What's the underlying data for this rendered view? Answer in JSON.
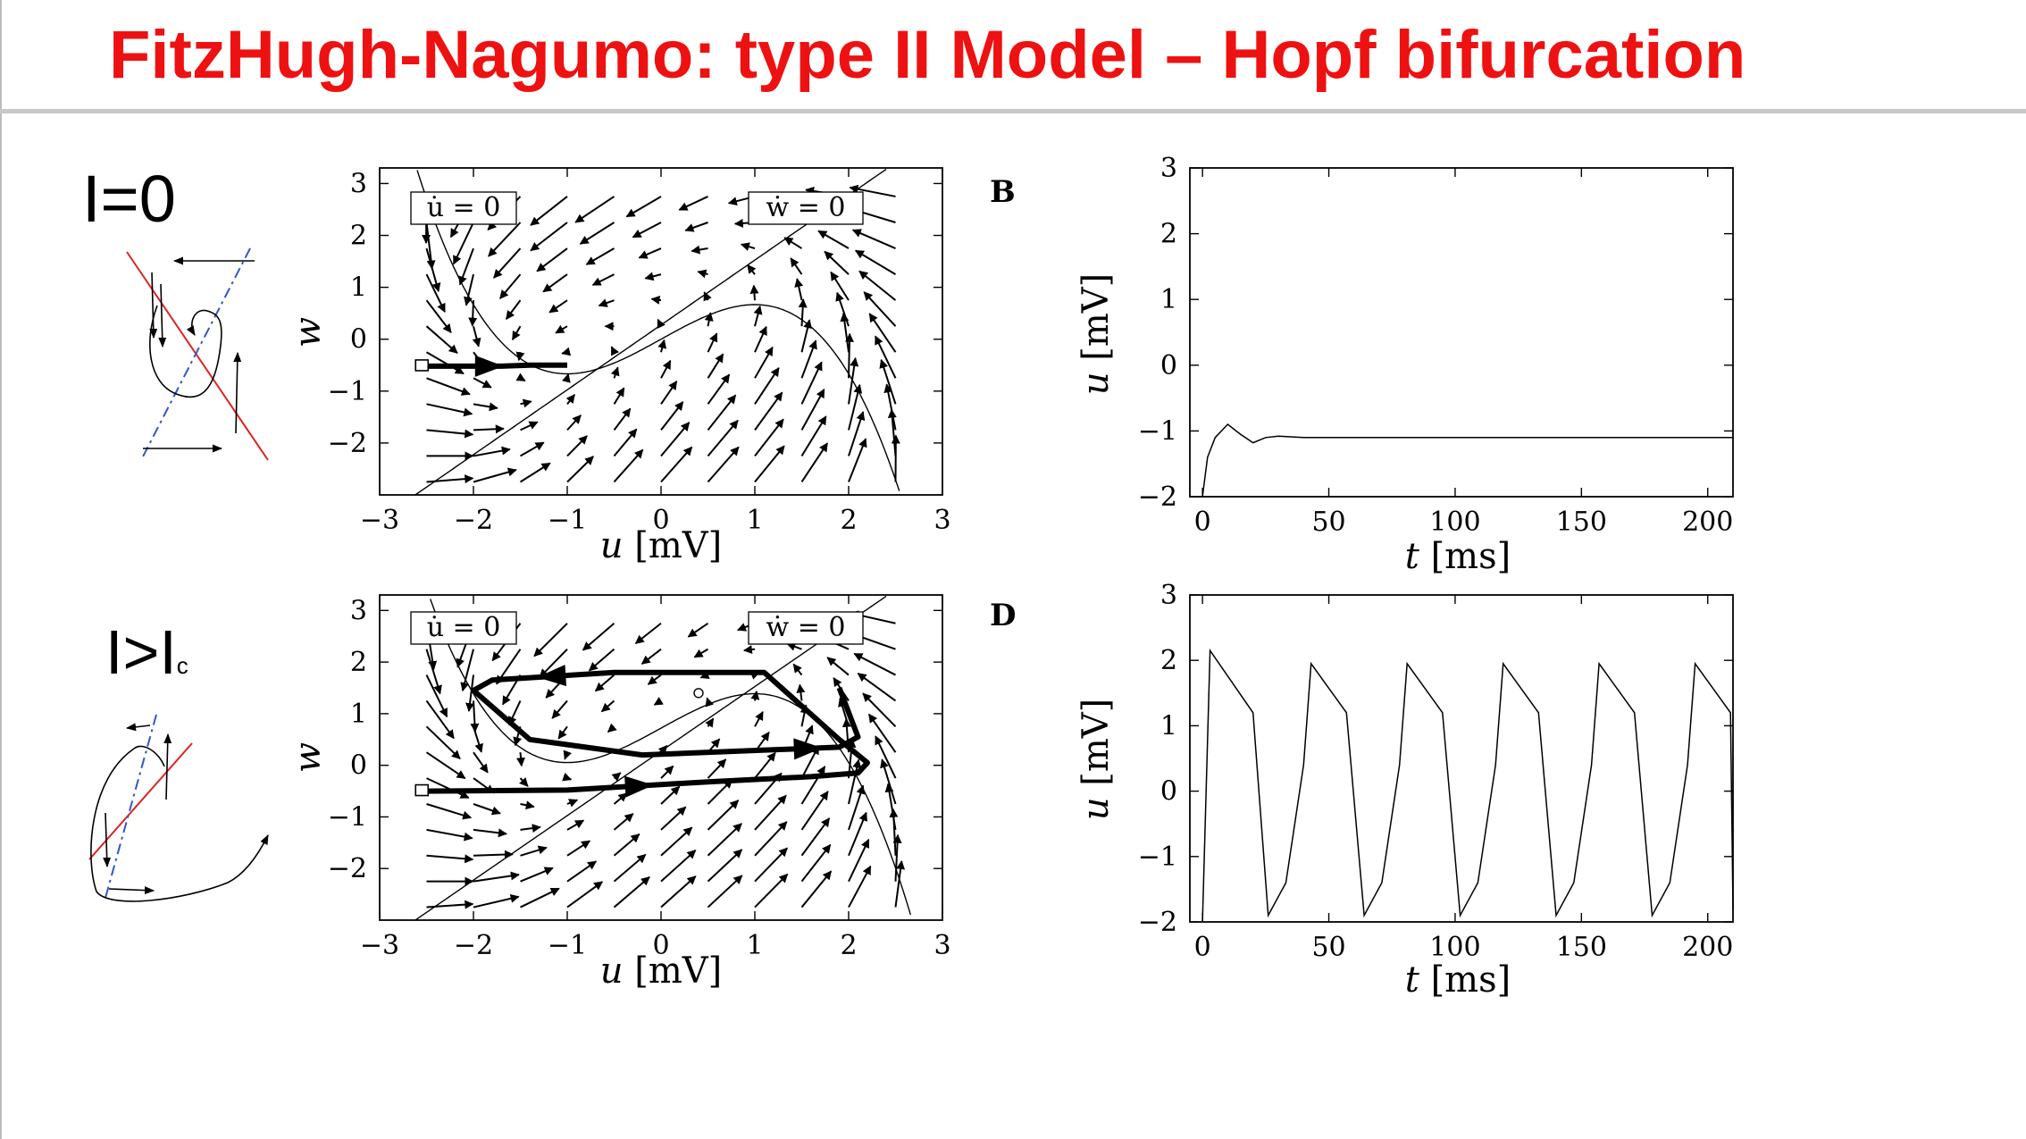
{
  "title": "FitzHugh-Nagumo:  type II Model – Hopf bifurcation",
  "conditions": {
    "top": "I=0",
    "bottom_main": "I>I",
    "bottom_sub": "c"
  },
  "colors": {
    "title": "#ee1111",
    "sketch_nullcline_red": "#dd2222",
    "sketch_nullcline_blue": "#3355cc"
  },
  "phase_axes": {
    "xlabel_var": "u",
    "xlabel_unit": "[mV]",
    "ylabel": "w",
    "xticks": [
      "−3",
      "−2",
      "−1",
      "0",
      "1",
      "2",
      "3"
    ],
    "yticks": [
      "3",
      "2",
      "1",
      "0",
      "−1",
      "−2"
    ],
    "xlim": [
      -3,
      3
    ],
    "ylim": [
      -3,
      3.3
    ]
  },
  "nullcline_labels": {
    "u_dot": "u̇ = 0",
    "w_dot": "ẇ = 0"
  },
  "time_axes": {
    "xlabel_var": "t",
    "xlabel_unit": "[ms]",
    "ylabel_var": "u",
    "ylabel_unit": "[mV]",
    "xticks": [
      "0",
      "50",
      "100",
      "150",
      "200"
    ],
    "yticks": [
      "3",
      "2",
      "1",
      "0",
      "−1",
      "−2"
    ],
    "xlim": [
      -5,
      210
    ],
    "ylim": [
      -2,
      3
    ]
  },
  "panel_labels": {
    "B": "B",
    "D": "D"
  },
  "chart_data": [
    {
      "type": "line",
      "title": "",
      "xlabel": "u [mV]",
      "ylabel": "w",
      "xlim": [
        -3,
        3
      ],
      "ylim": [
        -3,
        3.3
      ],
      "series": [
        {
          "x": [
            -2.55,
            -2.3,
            -2.0,
            -1.7,
            -1.4,
            -1.15,
            -1.0
          ],
          "y": [
            -0.52,
            -0.52,
            -0.52,
            -0.52,
            -0.5,
            -0.5,
            -0.5
          ]
        }
      ]
    },
    {
      "type": "line",
      "title": "",
      "xlabel": "t [ms]",
      "ylabel": "u [mV]",
      "xlim": [
        -5,
        210
      ],
      "ylim": [
        -2,
        3
      ],
      "series": [
        {
          "x": [
            0,
            2,
            5,
            10,
            15,
            20,
            25,
            30,
            40,
            60,
            100,
            150,
            210
          ],
          "y": [
            -2,
            -1.4,
            -1.1,
            -0.9,
            -1.05,
            -1.18,
            -1.1,
            -1.08,
            -1.1,
            -1.1,
            -1.1,
            -1.1,
            -1.1
          ]
        }
      ]
    },
    {
      "type": "line",
      "title": "",
      "xlabel": "u [mV]",
      "ylabel": "w",
      "xlim": [
        -3,
        3
      ],
      "ylim": [
        -3,
        3.3
      ],
      "series": [
        {
          "x": [
            -2.55,
            -1.0,
            0.5,
            1.6,
            2.1,
            2.2,
            1.9,
            1.1,
            -0.5,
            -1.8,
            -2.0,
            -1.4,
            -0.2,
            1.2,
            1.9,
            2.1,
            1.9
          ],
          "y": [
            -0.5,
            -0.48,
            -0.32,
            -0.22,
            -0.15,
            0.05,
            0.5,
            1.8,
            1.8,
            1.65,
            1.45,
            0.5,
            0.2,
            0.3,
            0.35,
            0.55,
            1.5
          ]
        }
      ]
    },
    {
      "type": "line",
      "title": "",
      "xlabel": "t [ms]",
      "ylabel": "u [mV]",
      "xlim": [
        -5,
        210
      ],
      "ylim": [
        -2,
        3
      ],
      "series": [
        {
          "x": [
            0,
            3,
            20,
            26,
            33,
            40,
            43,
            57,
            64,
            71,
            78,
            81,
            95,
            102,
            109,
            116,
            119,
            133,
            140,
            147,
            154,
            157,
            171,
            178,
            185,
            192,
            195,
            209,
            210
          ],
          "y": [
            -2,
            2.15,
            1.2,
            -1.9,
            -1.4,
            0.4,
            1.95,
            1.2,
            -1.9,
            -1.4,
            0.4,
            1.95,
            1.2,
            -1.9,
            -1.4,
            0.4,
            1.95,
            1.2,
            -1.9,
            -1.4,
            0.4,
            1.95,
            1.2,
            -1.9,
            -1.4,
            0.4,
            1.95,
            1.2,
            -1.8
          ]
        }
      ]
    }
  ]
}
